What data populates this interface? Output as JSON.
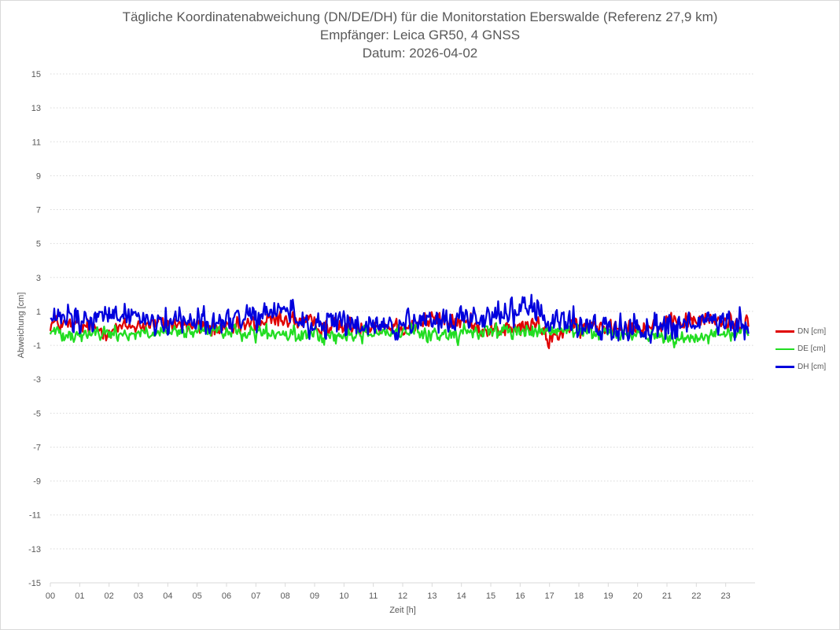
{
  "chart_data": {
    "type": "line",
    "title": "Tägliche Koordinatenabweichung (DN/DE/DH) für die Monitorstation Eberswalde (Referenz 27,9 km)",
    "subtitle1": "Empfänger: Leica GR50, 4 GNSS",
    "subtitle2": "Datum: 2026-04-02",
    "xlabel": "Zeit [h]",
    "ylabel": "Abweichung [cm]",
    "xlim": [
      0,
      24
    ],
    "ylim": [
      -15,
      15
    ],
    "x_ticks": [
      "00",
      "01",
      "02",
      "03",
      "04",
      "05",
      "06",
      "07",
      "08",
      "09",
      "10",
      "11",
      "12",
      "13",
      "14",
      "15",
      "16",
      "17",
      "18",
      "19",
      "20",
      "21",
      "22",
      "23"
    ],
    "y_ticks": [
      15,
      13,
      11,
      9,
      7,
      5,
      3,
      1,
      -1,
      -3,
      -5,
      -7,
      -9,
      -11,
      -13,
      -15
    ],
    "grid": "horizontal dotted",
    "legend_position": "right",
    "sample_interval_h": 0.0333,
    "series": [
      {
        "name": "DN [cm]",
        "color": "#e00000",
        "anchors": [
          [
            0,
            0.3
          ],
          [
            1,
            0.1
          ],
          [
            2,
            -0.1
          ],
          [
            3,
            0.2
          ],
          [
            4,
            0.3
          ],
          [
            5,
            0.1
          ],
          [
            6,
            -0.1
          ],
          [
            7,
            0.3
          ],
          [
            8,
            0.6
          ],
          [
            9,
            0.2
          ],
          [
            10,
            0.1
          ],
          [
            11,
            0.2
          ],
          [
            12,
            0.1
          ],
          [
            13,
            0.5
          ],
          [
            14,
            0.4
          ],
          [
            15,
            -0.1
          ],
          [
            16,
            0.0
          ],
          [
            16.5,
            0.3
          ],
          [
            17,
            -0.7
          ],
          [
            17.5,
            -0.1
          ],
          [
            18,
            0.0
          ],
          [
            19,
            0.2
          ],
          [
            20,
            0.1
          ],
          [
            21,
            0.2
          ],
          [
            22,
            0.5
          ],
          [
            23,
            0.4
          ],
          [
            23.8,
            0.3
          ]
        ],
        "noise": 0.35
      },
      {
        "name": "DE [cm]",
        "color": "#22dd22",
        "anchors": [
          [
            0,
            -0.2
          ],
          [
            1,
            -0.3
          ],
          [
            2,
            -0.3
          ],
          [
            3,
            -0.3
          ],
          [
            4,
            -0.3
          ],
          [
            5,
            -0.2
          ],
          [
            6,
            -0.2
          ],
          [
            7,
            -0.3
          ],
          [
            8,
            -0.4
          ],
          [
            9,
            -0.4
          ],
          [
            10,
            -0.5
          ],
          [
            11,
            -0.2
          ],
          [
            12,
            -0.2
          ],
          [
            13,
            -0.4
          ],
          [
            14,
            -0.3
          ],
          [
            15,
            -0.1
          ],
          [
            16,
            -0.2
          ],
          [
            17,
            -0.2
          ],
          [
            18,
            -0.1
          ],
          [
            19,
            -0.3
          ],
          [
            20,
            -0.3
          ],
          [
            21,
            -0.6
          ],
          [
            22,
            -0.4
          ],
          [
            23,
            -0.4
          ],
          [
            23.8,
            -0.1
          ]
        ],
        "noise": 0.3
      },
      {
        "name": "DH [cm]",
        "color": "#0000dd",
        "anchors": [
          [
            0,
            0.4
          ],
          [
            0.5,
            0.6
          ],
          [
            1,
            0.3
          ],
          [
            2,
            0.7
          ],
          [
            2.8,
            0.9
          ],
          [
            3.5,
            0.5
          ],
          [
            4,
            0.3
          ],
          [
            4.5,
            0.6
          ],
          [
            5,
            0.7
          ],
          [
            5.5,
            0.2
          ],
          [
            6,
            0.4
          ],
          [
            6.5,
            0.7
          ],
          [
            7,
            0.4
          ],
          [
            7.5,
            0.9
          ],
          [
            8,
            1.3
          ],
          [
            8.4,
            0.5
          ],
          [
            9,
            0.2
          ],
          [
            9.5,
            0.3
          ],
          [
            10,
            0.2
          ],
          [
            11,
            0.2
          ],
          [
            12,
            0.1
          ],
          [
            13,
            0.3
          ],
          [
            14,
            0.7
          ],
          [
            14.5,
            0.5
          ],
          [
            15,
            0.8
          ],
          [
            15.5,
            1.0
          ],
          [
            16,
            1.2
          ],
          [
            16.5,
            1.0
          ],
          [
            17,
            0.3
          ],
          [
            17.5,
            0.4
          ],
          [
            18,
            0.2
          ],
          [
            19,
            0.0
          ],
          [
            20,
            0.1
          ],
          [
            21,
            0.1
          ],
          [
            22,
            0.3
          ],
          [
            22.5,
            0.4
          ],
          [
            23,
            0.1
          ],
          [
            23.8,
            0.3
          ]
        ],
        "noise": 0.55
      }
    ]
  }
}
